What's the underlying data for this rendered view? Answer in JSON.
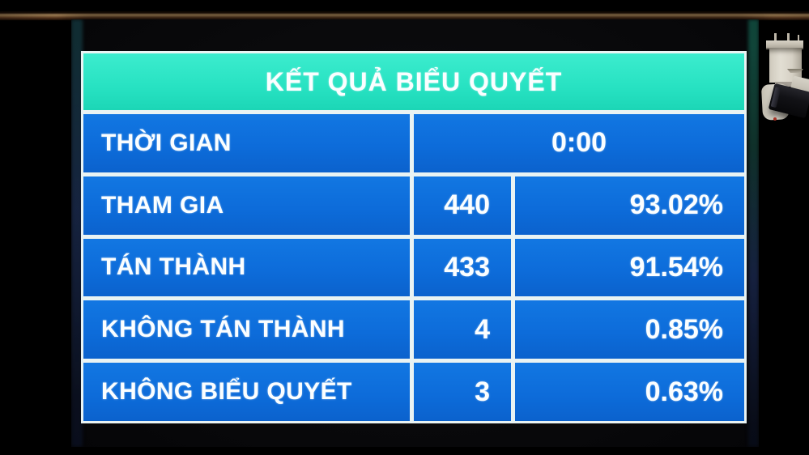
{
  "display_board": {
    "title": "KẾT QUẢ BIỂU QUYẾT",
    "time_row": {
      "label": "THỜI GIAN",
      "value": "0:00"
    },
    "result_rows": [
      {
        "label": "THAM GIA",
        "count": "440",
        "percent": "93.02%"
      },
      {
        "label": "TÁN THÀNH",
        "count": "433",
        "percent": "91.54%"
      },
      {
        "label": "KHÔNG TÁN THÀNH",
        "count": "4",
        "percent": "0.85%"
      },
      {
        "label": "KHÔNG BIỂU QUYẾT",
        "count": "3",
        "percent": "0.63%"
      }
    ],
    "colors": {
      "header_bg": "#27e2c2",
      "row_bg": "#0d6cda",
      "grid_border": "#e9f3f3",
      "text": "#ffffff"
    }
  }
}
